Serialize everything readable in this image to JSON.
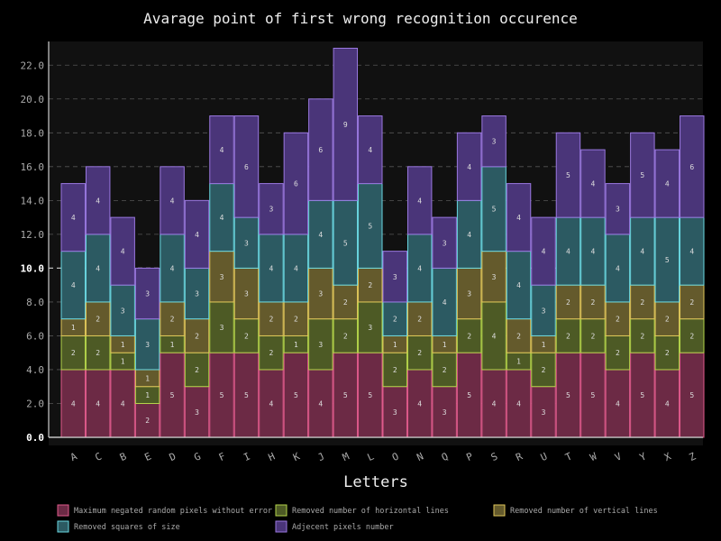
{
  "chart_data": {
    "type": "bar",
    "stacked": true,
    "title": "Avarage point of first wrong recognition occurence",
    "xlabel": "Letters",
    "ylabel": "",
    "ylim": [
      0,
      23.4
    ],
    "yticks": [
      0.0,
      2.0,
      4.0,
      6.0,
      8.0,
      10.0,
      12.0,
      14.0,
      16.0,
      18.0,
      20.0,
      22.0
    ],
    "ytick_labels": [
      "0.0",
      "2.0",
      "4.0",
      "6.0",
      "8.0",
      "10.0",
      "12.0",
      "14.0",
      "16.0",
      "18.0",
      "20.0",
      "22.0"
    ],
    "highlight_lines": [
      0,
      10
    ],
    "grid": "horizontal-dashed",
    "legend_position": "bottom",
    "categories": [
      "A",
      "C",
      "B",
      "E",
      "D",
      "G",
      "F",
      "I",
      "H",
      "K",
      "J",
      "M",
      "L",
      "O",
      "N",
      "Q",
      "P",
      "S",
      "R",
      "U",
      "T",
      "W",
      "V",
      "Y",
      "X",
      "Z"
    ],
    "series": [
      {
        "name": "Maximum negated random pixels without error",
        "fill": "#6c2a45",
        "stroke": "#e05a8c",
        "values": [
          4,
          4,
          4,
          2,
          5,
          3,
          5,
          5,
          4,
          5,
          4,
          5,
          5,
          3,
          4,
          3,
          5,
          4,
          4,
          3,
          5,
          5,
          4,
          5,
          4,
          5
        ]
      },
      {
        "name": "Removed number of horizontal lines",
        "fill": "#4d5a25",
        "stroke": "#b4d44a",
        "values": [
          2,
          2,
          1,
          1,
          1,
          2,
          3,
          2,
          2,
          1,
          3,
          2,
          3,
          2,
          2,
          2,
          2,
          4,
          1,
          2,
          2,
          2,
          2,
          2,
          2,
          2
        ]
      },
      {
        "name": "Removed number of vertical lines",
        "fill": "#645a2c",
        "stroke": "#e0c65a",
        "values": [
          1,
          2,
          1,
          1,
          2,
          2,
          3,
          3,
          2,
          2,
          3,
          2,
          2,
          1,
          2,
          1,
          3,
          3,
          2,
          1,
          2,
          2,
          2,
          2,
          2,
          2
        ]
      },
      {
        "name": "Removed squares of size",
        "fill": "#2c5a62",
        "stroke": "#6ad8e2",
        "values": [
          4,
          4,
          3,
          3,
          4,
          3,
          4,
          3,
          4,
          4,
          4,
          5,
          5,
          2,
          4,
          4,
          4,
          5,
          4,
          3,
          4,
          4,
          4,
          4,
          5,
          4
        ]
      },
      {
        "name": "Adjecent pixels number",
        "fill": "#4a3579",
        "stroke": "#9a78e0",
        "values": [
          4,
          4,
          4,
          3,
          4,
          4,
          4,
          6,
          3,
          6,
          6,
          9,
          4,
          3,
          4,
          3,
          4,
          3,
          4,
          4,
          5,
          4,
          3,
          5,
          4,
          6
        ]
      }
    ],
    "colors": {
      "background": "#000000",
      "plot_background": "#111111",
      "axis": "#cccccc",
      "grid": "#555555",
      "text": "#dddddd",
      "tick_text": "#aaaaaa",
      "segment_label": "#dddddd"
    }
  }
}
